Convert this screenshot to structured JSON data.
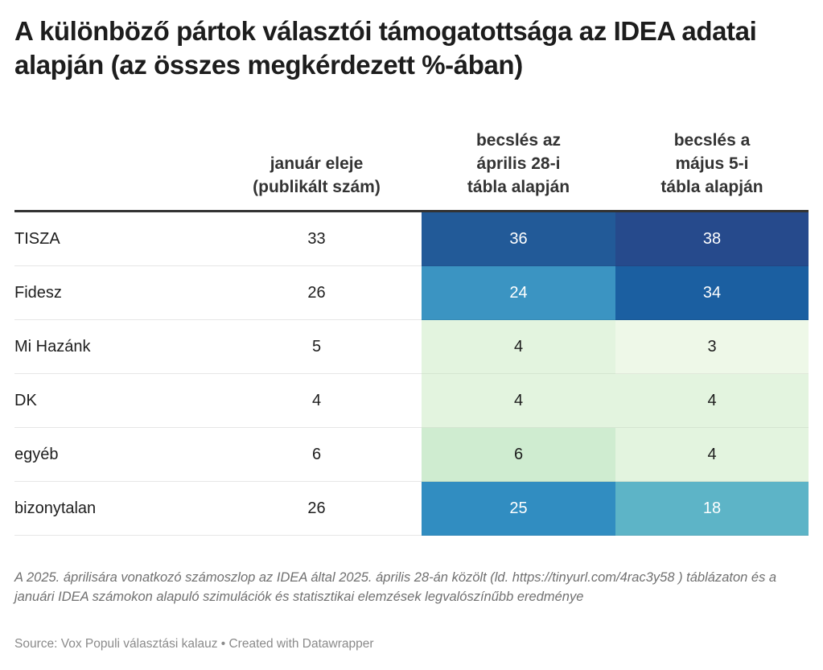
{
  "title": "A különböző pártok választói támogatottsága az IDEA adatai alapján (az összes megkérdezett %-ában)",
  "chart_data": {
    "type": "table",
    "title": "A különböző pártok választói támogatottsága az IDEA adatai alapján (az összes megkérdezett %-ában)",
    "columns": [
      "",
      "január eleje (publikált szám)",
      "becslés az április 28-i tábla alapján",
      "becslés a május 5-i tábla alapján"
    ],
    "column_lines": [
      [
        ""
      ],
      [
        "január eleje",
        "(publikált szám)"
      ],
      [
        "becslés az",
        "április 28-i",
        "tábla alapján"
      ],
      [
        "becslés a",
        "május 5-i",
        "tábla alapján"
      ]
    ],
    "rows": [
      {
        "name": "TISZA",
        "values": [
          33,
          36,
          38
        ]
      },
      {
        "name": "Fidesz",
        "values": [
          26,
          24,
          34
        ]
      },
      {
        "name": "Mi Hazánk",
        "values": [
          5,
          4,
          3
        ]
      },
      {
        "name": "DK",
        "values": [
          4,
          4,
          4
        ]
      },
      {
        "name": "egyéb",
        "values": [
          6,
          6,
          4
        ]
      },
      {
        "name": "bizonytalan",
        "values": [
          26,
          25,
          18
        ]
      }
    ],
    "heatmap_columns": [
      1,
      2
    ],
    "heatmap_colors": {
      "36": "#225a98",
      "38": "#264a8c",
      "24": "#3b94c2",
      "34": "#1b5fa1",
      "4": "#e3f4df",
      "3": "#eef8e8",
      "6": "#cfecd0",
      "25": "#318dc1",
      "18": "#5db4c7"
    },
    "light_text_threshold": 15,
    "text_light": "#ffffff",
    "text_dark": "#1d1d1d"
  },
  "note": "A 2025. áprilisára vonatkozó számoszlop az IDEA által 2025. április 28-án közölt (ld. https://tinyurl.com/4rac3y58 ) táblázaton és a januári IDEA számokon alapuló szimulációk és statisztikai elemzések legvalószínűbb eredménye",
  "source": "Source: Vox Populi választási kalauz • Created with Datawrapper"
}
